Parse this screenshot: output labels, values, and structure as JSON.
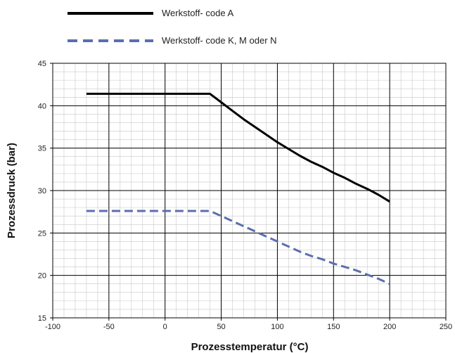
{
  "chart_data": {
    "type": "line",
    "title": "",
    "xlabel": "Prozesstemperatur (°C)",
    "ylabel": "Prozessdruck (bar)",
    "xlim": [
      -100,
      250
    ],
    "ylim": [
      15,
      45
    ],
    "xticks": [
      -100,
      -50,
      0,
      50,
      100,
      150,
      200,
      250
    ],
    "yticks": [
      15,
      20,
      25,
      30,
      35,
      40,
      45
    ],
    "grid": true,
    "minor_grid": true,
    "legend_position": "top-left",
    "series": [
      {
        "name": "Werkstoff- code A",
        "color": "#000000",
        "dash": "solid",
        "x": [
          -70,
          40,
          50,
          60,
          70,
          80,
          90,
          100,
          110,
          120,
          130,
          140,
          150,
          160,
          170,
          180,
          190,
          200
        ],
        "y": [
          41.4,
          41.4,
          40.4,
          39.4,
          38.4,
          37.5,
          36.6,
          35.7,
          34.9,
          34.1,
          33.4,
          32.8,
          32.1,
          31.5,
          30.8,
          30.2,
          29.5,
          28.7
        ]
      },
      {
        "name": "Werkstoff- code K, M oder N",
        "color": "#5b6eb0",
        "dash": "dashed",
        "x": [
          -70,
          40,
          50,
          60,
          70,
          80,
          90,
          100,
          110,
          120,
          130,
          140,
          150,
          160,
          170,
          180,
          190,
          200
        ],
        "y": [
          27.6,
          27.6,
          27.0,
          26.4,
          25.8,
          25.2,
          24.6,
          24.0,
          23.4,
          22.8,
          22.3,
          21.9,
          21.4,
          21.0,
          20.6,
          20.1,
          19.6,
          19.0
        ]
      }
    ]
  }
}
